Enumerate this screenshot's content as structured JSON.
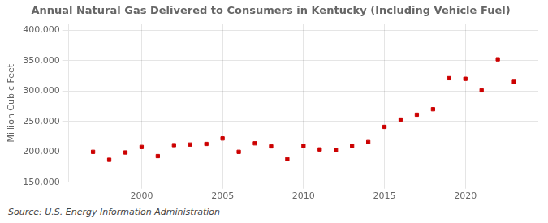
{
  "chart_data": {
    "type": "scatter",
    "title": "Annual Natural Gas Delivered to Consumers in Kentucky (Including Vehicle Fuel)",
    "y_label": "Million Cubic Feet",
    "annotation": "Source: U.S. Energy Information Administration",
    "x": [
      1997,
      1998,
      1999,
      2000,
      2001,
      2002,
      2003,
      2004,
      2005,
      2006,
      2007,
      2008,
      2009,
      2010,
      2011,
      2012,
      2013,
      2014,
      2015,
      2016,
      2017,
      2018,
      2019,
      2020,
      2021,
      2022,
      2023
    ],
    "values": [
      200000,
      187000,
      199000,
      208000,
      193000,
      211000,
      212000,
      213000,
      222000,
      200000,
      214000,
      209000,
      188000,
      210000,
      204000,
      203000,
      210000,
      216000,
      241000,
      253000,
      261000,
      270000,
      321000,
      320000,
      301000,
      352000,
      315000
    ],
    "color": "#cc0000",
    "marker": "square",
    "xlim": [
      1995.5,
      2024.5
    ],
    "xticks": [
      2000,
      2005,
      2010,
      2015,
      2020
    ],
    "ylim": [
      150000,
      410000
    ],
    "yticks": [
      {
        "value": 150000,
        "label": "150,000"
      },
      {
        "value": 200000,
        "label": "200,000"
      },
      {
        "value": 250000,
        "label": "250,000"
      },
      {
        "value": 300000,
        "label": "300,000"
      },
      {
        "value": 350000,
        "label": "350,000"
      },
      {
        "value": 400000,
        "label": "400,000"
      }
    ],
    "grid": true
  }
}
